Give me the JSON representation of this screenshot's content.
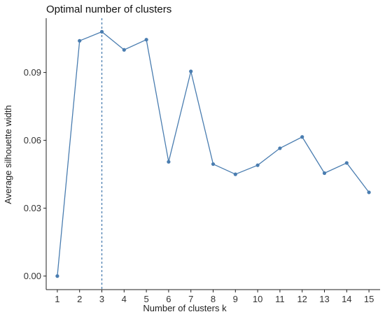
{
  "chart_data": {
    "type": "line",
    "title": "Optimal number of clusters",
    "xlabel": "Number of clusters k",
    "ylabel": "Average silhouette width",
    "x": [
      1,
      2,
      3,
      4,
      5,
      6,
      7,
      8,
      9,
      10,
      11,
      12,
      13,
      14,
      15
    ],
    "x_tick_labels": [
      "1",
      "2",
      "3",
      "4",
      "5",
      "6",
      "7",
      "8",
      "9",
      "10",
      "11",
      "12",
      "13",
      "14",
      "15"
    ],
    "series": [
      {
        "values": [
          0.0,
          0.104,
          0.108,
          0.1,
          0.1045,
          0.0505,
          0.0905,
          0.0495,
          0.045,
          0.049,
          0.0565,
          0.0615,
          0.0455,
          0.05,
          0.037
        ],
        "color": "#4a7db0"
      }
    ],
    "y_ticks": [
      0.0,
      0.03,
      0.06,
      0.09
    ],
    "y_tick_labels": [
      "0.00",
      "0.03",
      "0.06",
      "0.09"
    ],
    "xlim": [
      0.5,
      15.5
    ],
    "ylim": [
      -0.006,
      0.114
    ],
    "optimal_k": 3,
    "optimal_line_color": "#4a7db0",
    "grid": false
  }
}
